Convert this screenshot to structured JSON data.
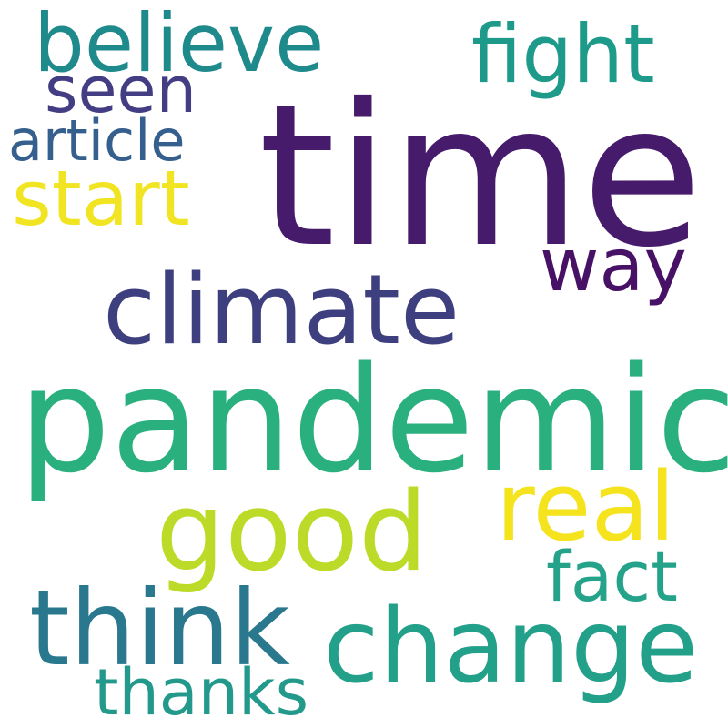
{
  "words": [
    {
      "text": "time",
      "color": "#471b6b"
    },
    {
      "text": "pandemic",
      "color": "#2ab07f"
    },
    {
      "text": "climate",
      "color": "#3e3f7e"
    },
    {
      "text": "change",
      "color": "#23a08a"
    },
    {
      "text": "think",
      "color": "#2a788e"
    },
    {
      "text": "good",
      "color": "#bcdb28"
    },
    {
      "text": "real",
      "color": "#f4e31d"
    },
    {
      "text": "believe",
      "color": "#1f8a8c"
    },
    {
      "text": "fight",
      "color": "#1e9a8a"
    },
    {
      "text": "start",
      "color": "#f1e422"
    },
    {
      "text": "seen",
      "color": "#433d84"
    },
    {
      "text": "article",
      "color": "#355f8d"
    },
    {
      "text": "way",
      "color": "#471266"
    },
    {
      "text": "fact",
      "color": "#25a28a"
    },
    {
      "text": "thanks",
      "color": "#23998b"
    }
  ]
}
